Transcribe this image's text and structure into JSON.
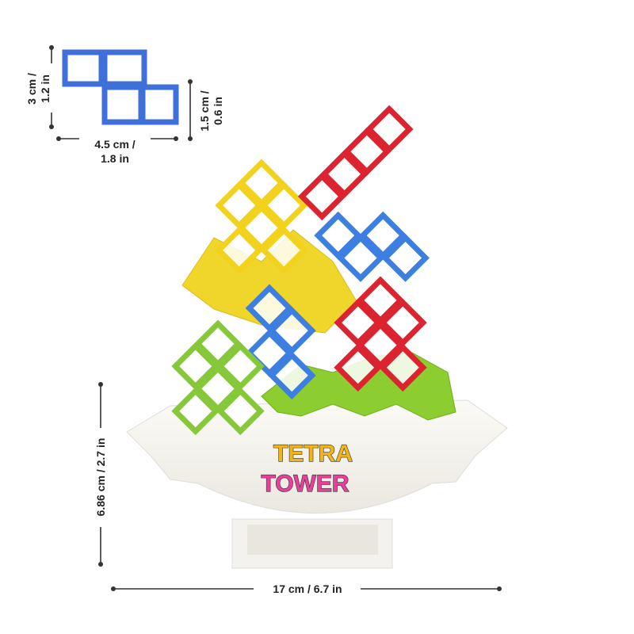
{
  "dimensions": {
    "piece_height": {
      "lines": [
        "3 cm /",
        "1.2 in"
      ]
    },
    "piece_width": {
      "lines": [
        "4.5 cm /",
        "1.8 in"
      ]
    },
    "piece_depth": {
      "lines": [
        "1.5 cm /",
        "0.6 in"
      ]
    },
    "tower_height": {
      "text": "6.86 cm / 2.7 in"
    },
    "tower_width": {
      "text": "17 cm / 6.7 in"
    }
  },
  "logo": {
    "lines": [
      "TETRA",
      "TOWER"
    ]
  }
}
